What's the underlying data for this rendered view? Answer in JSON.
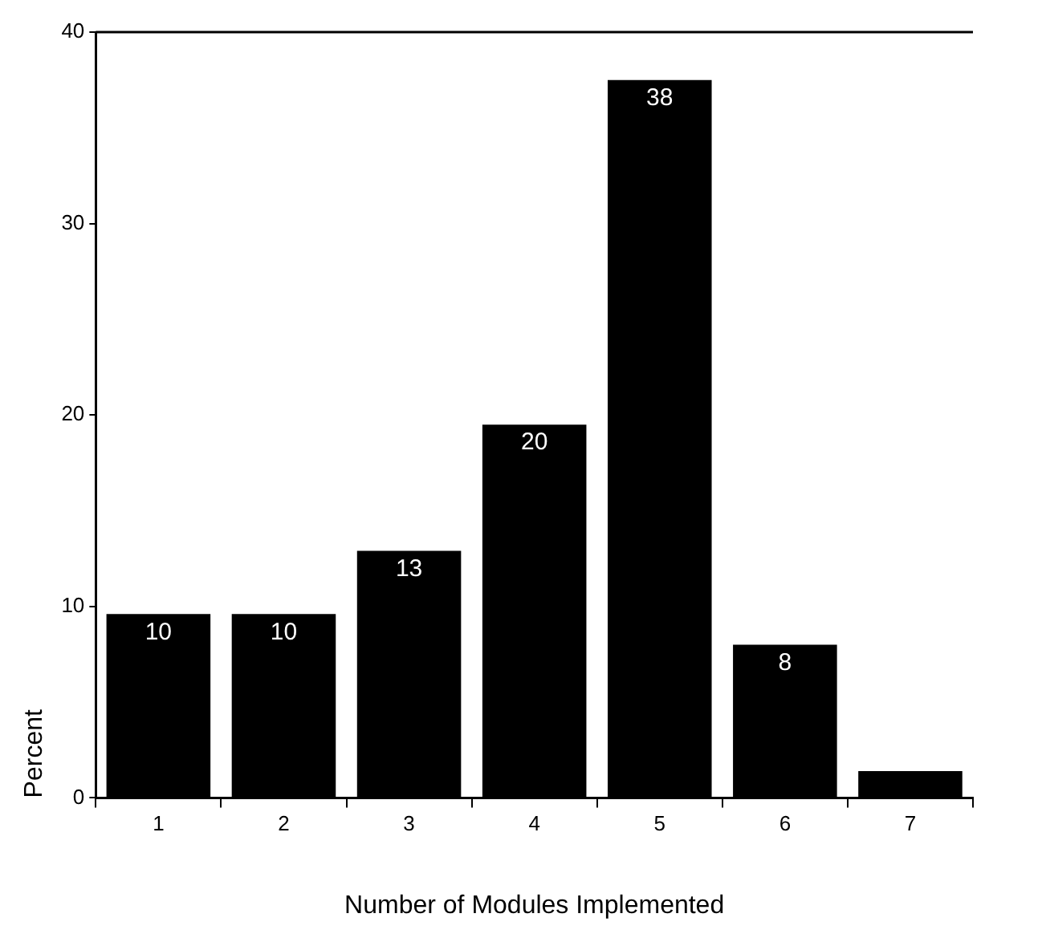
{
  "chart_data": {
    "type": "bar",
    "xlabel": "Number of Modules Implemented",
    "ylabel": "Percent",
    "categories": [
      "1",
      "2",
      "3",
      "4",
      "5",
      "6",
      "7"
    ],
    "values": [
      9.6,
      9.6,
      12.9,
      19.5,
      37.5,
      8.0,
      1.4
    ],
    "value_labels": [
      "10",
      "10",
      "13",
      "20",
      "38",
      "8",
      null
    ],
    "color": "#000000",
    "ylim": [
      0,
      40
    ],
    "yticks": [
      0,
      10,
      20,
      30,
      40
    ],
    "grid": false
  }
}
